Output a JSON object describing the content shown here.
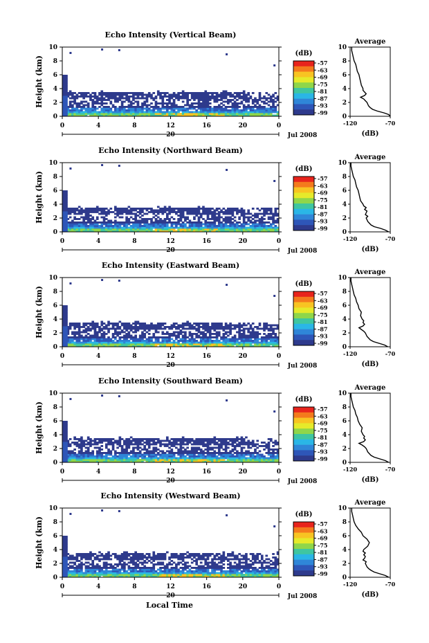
{
  "chart_data": {
    "type": "heatmap",
    "panel_titles": [
      "Echo Intensity (Vertical Beam)",
      "Echo Intensity (Northward Beam)",
      "Echo Intensity (Eastward Beam)",
      "Echo Intensity (Southward Beam)",
      "Echo Intensity (Westward Beam)"
    ],
    "ylabel": "Height (km)",
    "xlabel": "Local Time",
    "xlim": [
      0,
      24
    ],
    "ylim": [
      0,
      10
    ],
    "x_ticks": [
      "0",
      "4",
      "8",
      "12",
      "16",
      "20",
      "0"
    ],
    "y_ticks": [
      "0",
      "2",
      "4",
      "6",
      "8",
      "10"
    ],
    "day_label": "20",
    "date_label": "Jul 2008",
    "colorbar": {
      "unit": "(dB)",
      "ticks": [
        "-57",
        "-63",
        "-69",
        "-75",
        "-81",
        "-87",
        "-93",
        "-99"
      ],
      "colors": [
        "#e8241c",
        "#f47a1c",
        "#f8c422",
        "#e6ea2a",
        "#8fd64a",
        "#3fc6a0",
        "#2ab6e6",
        "#2f86d8",
        "#2e56b8",
        "#2e3a8c"
      ]
    },
    "profile": {
      "title": "Average",
      "xlabel": "(dB)",
      "xlim": [
        -120,
        -70
      ],
      "x_ticks": [
        "-120",
        "-70"
      ],
      "y_ticks": [
        "0",
        "2",
        "4",
        "6",
        "8",
        "10"
      ],
      "ylim": [
        0,
        10
      ]
    },
    "series": [
      {
        "name": "Vertical Beam",
        "avg_profile": {
          "height": [
            0.0,
            0.25,
            0.5,
            0.75,
            1.0,
            1.25,
            1.5,
            1.75,
            2.0,
            2.25,
            2.5,
            2.75,
            3.0,
            3.25,
            3.5,
            3.75,
            4.0,
            4.5,
            5.0,
            5.5,
            6.0,
            6.5,
            7.0,
            7.5,
            8.0,
            8.5,
            9.0,
            9.5,
            10.0
          ],
          "db": [
            -70,
            -72,
            -78,
            -86,
            -92,
            -95,
            -97,
            -98,
            -99,
            -101,
            -103,
            -107,
            -102,
            -100,
            -102,
            -104,
            -104,
            -106,
            -107,
            -108,
            -109,
            -111,
            -112,
            -113,
            -115,
            -116,
            -117,
            -118,
            -118
          ]
        }
      },
      {
        "name": "Northward Beam",
        "avg_profile": {
          "height": [
            0.0,
            0.25,
            0.5,
            0.75,
            1.0,
            1.25,
            1.5,
            1.75,
            2.0,
            2.25,
            2.5,
            2.75,
            3.0,
            3.25,
            3.5,
            3.75,
            4.0,
            4.5,
            5.0,
            5.5,
            6.0,
            6.5,
            7.0,
            7.5,
            8.0,
            8.5,
            9.0,
            9.5,
            10.0
          ],
          "db": [
            -72,
            -76,
            -82,
            -90,
            -94,
            -96,
            -98,
            -99,
            -100,
            -98,
            -101,
            -100,
            -99,
            -102,
            -100,
            -103,
            -104,
            -107,
            -108,
            -109,
            -110,
            -112,
            -113,
            -114,
            -116,
            -117,
            -118,
            -119,
            -119
          ]
        }
      },
      {
        "name": "Eastward Beam",
        "avg_profile": {
          "height": [
            0.0,
            0.25,
            0.5,
            0.75,
            1.0,
            1.25,
            1.5,
            1.75,
            2.0,
            2.25,
            2.5,
            2.75,
            3.0,
            3.25,
            3.5,
            3.75,
            4.0,
            4.5,
            5.0,
            5.5,
            6.0,
            6.5,
            7.0,
            7.5,
            8.0,
            8.5,
            9.0,
            9.5,
            10.0
          ],
          "db": [
            -73,
            -77,
            -84,
            -91,
            -95,
            -97,
            -99,
            -100,
            -101,
            -103,
            -106,
            -109,
            -104,
            -102,
            -104,
            -103,
            -105,
            -107,
            -106,
            -109,
            -110,
            -112,
            -113,
            -115,
            -116,
            -117,
            -118,
            -119,
            -119
          ]
        }
      },
      {
        "name": "Southward Beam",
        "avg_profile": {
          "height": [
            0.0,
            0.25,
            0.5,
            0.75,
            1.0,
            1.25,
            1.5,
            1.75,
            2.0,
            2.25,
            2.5,
            2.75,
            3.0,
            3.25,
            3.5,
            3.75,
            4.0,
            4.5,
            5.0,
            5.5,
            6.0,
            6.5,
            7.0,
            7.5,
            8.0,
            8.5,
            9.0,
            9.5,
            10.0
          ],
          "db": [
            -72,
            -76,
            -83,
            -90,
            -94,
            -96,
            -98,
            -99,
            -100,
            -102,
            -105,
            -109,
            -103,
            -101,
            -103,
            -102,
            -104,
            -106,
            -105,
            -108,
            -110,
            -111,
            -113,
            -114,
            -116,
            -117,
            -118,
            -119,
            -119
          ]
        }
      },
      {
        "name": "Westward Beam",
        "avg_profile": {
          "height": [
            0.0,
            0.25,
            0.5,
            0.75,
            1.0,
            1.25,
            1.5,
            1.75,
            2.0,
            2.25,
            2.5,
            2.75,
            3.0,
            3.25,
            3.5,
            3.75,
            4.0,
            4.5,
            5.0,
            5.5,
            6.0,
            6.5,
            7.0,
            7.5,
            8.0,
            8.5,
            9.0,
            9.5,
            10.0
          ],
          "db": [
            -72,
            -76,
            -83,
            -90,
            -94,
            -97,
            -99,
            -100,
            -101,
            -100,
            -104,
            -102,
            -101,
            -103,
            -101,
            -104,
            -103,
            -98,
            -96,
            -99,
            -104,
            -106,
            -110,
            -113,
            -115,
            -116,
            -117,
            -118,
            -118
          ]
        }
      }
    ]
  }
}
